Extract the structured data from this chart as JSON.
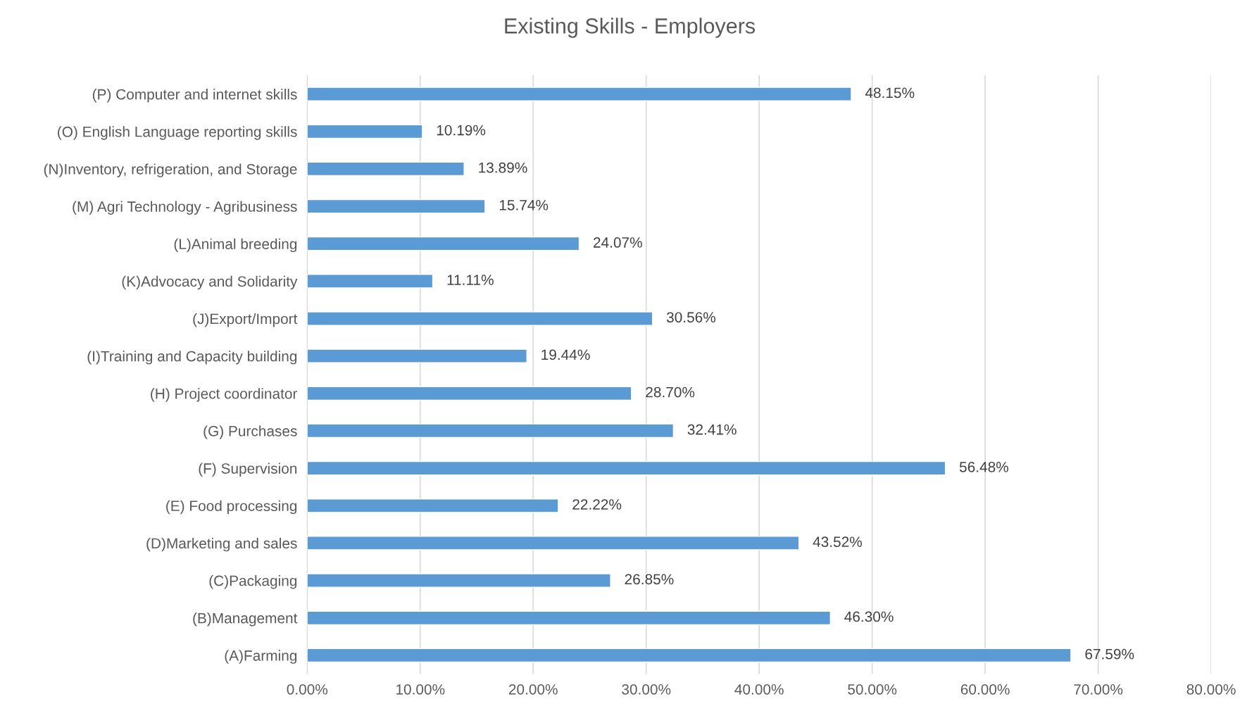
{
  "chart_data": {
    "type": "bar",
    "orientation": "horizontal",
    "title": "Existing Skills - Employers",
    "categories": [
      "(P) Computer and internet skills",
      "(O) English Language reporting skills",
      "(N)Inventory, refrigeration, and Storage",
      "(M) Agri Technology - Agribusiness",
      "(L)Animal breeding",
      "(K)Advocacy and Solidarity",
      "(J)Export/Import",
      "(I)Training and Capacity building",
      "(H) Project coordinator",
      "(G) Purchases",
      "(F) Supervision",
      "(E) Food processing",
      "(D)Marketing and sales",
      "(C)Packaging",
      "(B)Management",
      "(A)Farming"
    ],
    "values": [
      48.15,
      10.19,
      13.89,
      15.74,
      24.07,
      11.11,
      30.56,
      19.44,
      28.7,
      32.41,
      56.48,
      22.22,
      43.52,
      26.85,
      46.3,
      67.59
    ],
    "value_labels": [
      "48.15%",
      "10.19%",
      "13.89%",
      "15.74%",
      "24.07%",
      "11.11%",
      "30.56%",
      "19.44%",
      "28.70%",
      "32.41%",
      "56.48%",
      "22.22%",
      "43.52%",
      "26.85%",
      "46.30%",
      "67.59%"
    ],
    "color": "#5b9bd5",
    "xlim": [
      0,
      80
    ],
    "xticks": [
      {
        "value": 0,
        "label": "0.00%"
      },
      {
        "value": 10,
        "label": "10.00%"
      },
      {
        "value": 20,
        "label": "20.00%"
      },
      {
        "value": 30,
        "label": "30.00%"
      },
      {
        "value": 40,
        "label": "40.00%"
      },
      {
        "value": 50,
        "label": "50.00%"
      },
      {
        "value": 60,
        "label": "60.00%"
      },
      {
        "value": 70,
        "label": "70.00%"
      },
      {
        "value": 80,
        "label": "80.00%"
      }
    ],
    "grid": "x",
    "legend": false
  }
}
